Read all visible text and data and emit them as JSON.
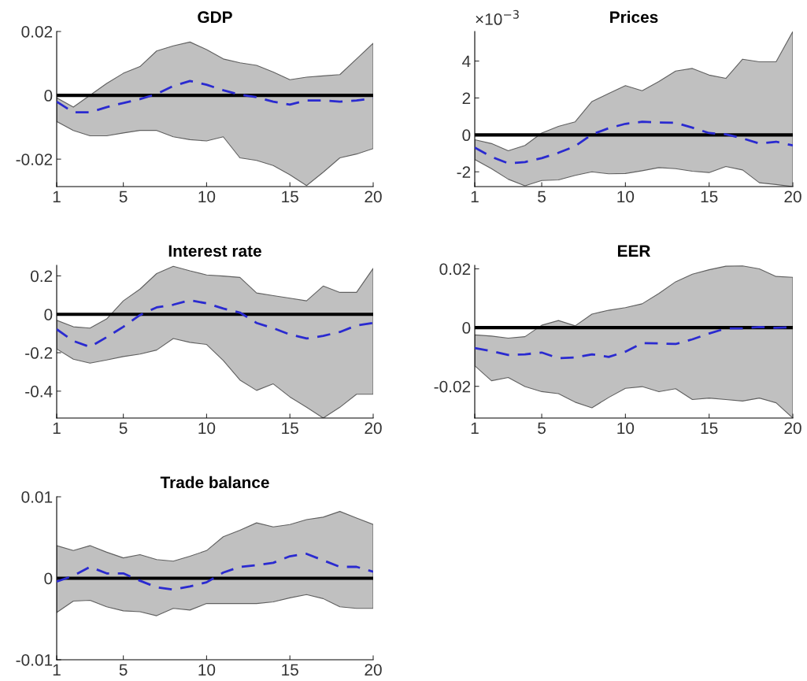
{
  "chart_data": [
    {
      "type": "line",
      "title": "GDP",
      "x": [
        1,
        2,
        3,
        4,
        5,
        6,
        7,
        8,
        9,
        10,
        11,
        12,
        13,
        14,
        15,
        16,
        17,
        18,
        19,
        20
      ],
      "xlim": [
        1,
        20
      ],
      "xticks": [
        1,
        5,
        10,
        15,
        20
      ],
      "ylim": [
        -0.0286,
        0.02
      ],
      "yticks": [
        {
          "value": -0.02,
          "label": "-0.02"
        },
        0,
        0.02
      ],
      "grid": false,
      "line_style": "dashed",
      "ref_lines": [
        {
          "axis": "y",
          "value": 0,
          "color": "#000000"
        }
      ],
      "series": [
        {
          "color": "#2a2ad0",
          "values": [
            -0.002,
            -0.0053,
            -0.0053,
            -0.0037,
            -0.0024,
            -0.0012,
            0.0004,
            0.0029,
            0.0045,
            0.0033,
            0.0016,
            0.0002,
            -0.0006,
            -0.002,
            -0.0029,
            -0.0016,
            -0.0016,
            -0.002,
            -0.0016,
            -0.001
          ],
          "lower": [
            -0.0082,
            -0.011,
            -0.0127,
            -0.0127,
            -0.0118,
            -0.011,
            -0.011,
            -0.013,
            -0.0139,
            -0.0143,
            -0.013,
            -0.0196,
            -0.0204,
            -0.022,
            -0.0249,
            -0.0283,
            -0.0241,
            -0.0196,
            -0.0184,
            -0.0167
          ],
          "upper": [
            -0.0008,
            -0.0037,
            0,
            0.0037,
            0.0069,
            0.009,
            0.0139,
            0.0155,
            0.0167,
            0.0143,
            0.0114,
            0.0102,
            0.0094,
            0.0073,
            0.0049,
            0.0057,
            0.0061,
            0.0065,
            0.0114,
            0.0163
          ]
        }
      ]
    },
    {
      "type": "line",
      "title": "Prices",
      "annotations": [
        "×10$^{−3}$"
      ],
      "x": [
        1,
        2,
        3,
        4,
        5,
        6,
        7,
        8,
        9,
        10,
        11,
        12,
        13,
        14,
        15,
        16,
        17,
        18,
        19,
        20
      ],
      "xlim": [
        1,
        20
      ],
      "xticks": [
        1,
        5,
        10,
        15,
        20
      ],
      "ylim": [
        -2.8,
        5.6
      ],
      "yticks": [
        {
          "value": -2,
          "label": "-2"
        },
        0,
        2,
        4
      ],
      "grid": false,
      "line_style": "dashed",
      "ref_lines": [
        {
          "axis": "y",
          "value": 0,
          "color": "#000000"
        }
      ],
      "series": [
        {
          "color": "#2a2ad0",
          "values": [
            -0.69,
            -1.19,
            -1.54,
            -1.47,
            -1.26,
            -0.97,
            -0.61,
            0.03,
            0.36,
            0.6,
            0.71,
            0.67,
            0.66,
            0.39,
            0.1,
            0.03,
            -0.19,
            -0.47,
            -0.37,
            -0.57
          ],
          "lower": [
            -1.33,
            -1.83,
            -2.4,
            -2.76,
            -2.47,
            -2.44,
            -2.19,
            -2.0,
            -2.11,
            -2.09,
            -1.94,
            -1.77,
            -1.83,
            -1.97,
            -2.04,
            -1.71,
            -1.9,
            -2.59,
            -2.69,
            -2.8
          ],
          "upper": [
            -0.26,
            -0.47,
            -0.86,
            -0.57,
            0.1,
            0.46,
            0.71,
            1.81,
            2.24,
            2.67,
            2.39,
            2.89,
            3.46,
            3.6,
            3.24,
            3.06,
            4.1,
            3.96,
            3.96,
            5.6
          ]
        }
      ]
    },
    {
      "type": "line",
      "title": "Interest rate",
      "x": [
        1,
        2,
        3,
        4,
        5,
        6,
        7,
        8,
        9,
        10,
        11,
        12,
        13,
        14,
        15,
        16,
        17,
        18,
        19,
        20
      ],
      "xlim": [
        1,
        20
      ],
      "xticks": [
        1,
        5,
        10,
        15,
        20
      ],
      "ylim": [
        -0.54,
        0.255
      ],
      "yticks": [
        {
          "value": -0.4,
          "label": "-0.4"
        },
        {
          "value": -0.2,
          "label": "-0.2"
        },
        0,
        0.2
      ],
      "grid": false,
      "line_style": "dashed",
      "ref_lines": [
        {
          "axis": "y",
          "value": 0,
          "color": "#000000"
        }
      ],
      "series": [
        {
          "color": "#2a2ad0",
          "values": [
            -0.078,
            -0.139,
            -0.17,
            -0.119,
            -0.065,
            -0.004,
            0.036,
            0.05,
            0.073,
            0.057,
            0.03,
            0.009,
            -0.045,
            -0.072,
            -0.105,
            -0.126,
            -0.112,
            -0.092,
            -0.058,
            -0.045
          ],
          "lower": [
            -0.18,
            -0.234,
            -0.254,
            -0.238,
            -0.22,
            -0.207,
            -0.186,
            -0.126,
            -0.146,
            -0.157,
            -0.24,
            -0.342,
            -0.396,
            -0.362,
            -0.43,
            -0.484,
            -0.54,
            -0.484,
            -0.416,
            -0.416
          ],
          "upper": [
            -0.031,
            -0.065,
            -0.072,
            -0.024,
            0.07,
            0.131,
            0.212,
            0.25,
            0.226,
            0.205,
            0.199,
            0.192,
            0.111,
            0.097,
            0.084,
            0.07,
            0.147,
            0.114,
            0.114,
            0.239
          ]
        }
      ]
    },
    {
      "type": "line",
      "title": "EER",
      "x": [
        1,
        2,
        3,
        4,
        5,
        6,
        7,
        8,
        9,
        10,
        11,
        12,
        13,
        14,
        15,
        16,
        17,
        18,
        19,
        20
      ],
      "xlim": [
        1,
        20
      ],
      "xticks": [
        1,
        5,
        10,
        15,
        20
      ],
      "ylim": [
        -0.0308,
        0.0212
      ],
      "yticks": [
        {
          "value": -0.02,
          "label": "-0.02"
        },
        0,
        0.02
      ],
      "grid": false,
      "line_style": "dashed",
      "ref_lines": [
        {
          "axis": "y",
          "value": 0,
          "color": "#000000"
        }
      ],
      "series": [
        {
          "color": "#2a2ad0",
          "values": [
            -0.007,
            -0.008,
            -0.0093,
            -0.0091,
            -0.0085,
            -0.0104,
            -0.0102,
            -0.0091,
            -0.01,
            -0.0082,
            -0.0053,
            -0.0054,
            -0.0056,
            -0.004,
            -0.002,
            -0.0003,
            -0.0003,
            0.0002,
            -0.0001,
            0.0002
          ],
          "lower": [
            -0.013,
            -0.0181,
            -0.017,
            -0.0201,
            -0.0218,
            -0.0225,
            -0.0254,
            -0.0273,
            -0.0238,
            -0.0207,
            -0.0201,
            -0.0218,
            -0.0208,
            -0.0245,
            -0.024,
            -0.0245,
            -0.025,
            -0.024,
            -0.0256,
            -0.0308
          ],
          "upper": [
            -0.0025,
            -0.0029,
            -0.0036,
            -0.0031,
            0.0008,
            0.0024,
            0.0006,
            0.0046,
            0.0059,
            0.0068,
            0.0081,
            0.0116,
            0.0156,
            0.0182,
            0.0197,
            0.0209,
            0.021,
            0.02,
            0.0174,
            0.0171
          ]
        }
      ]
    },
    {
      "type": "line",
      "title": "Trade balance",
      "x": [
        1,
        2,
        3,
        4,
        5,
        6,
        7,
        8,
        9,
        10,
        11,
        12,
        13,
        14,
        15,
        16,
        17,
        18,
        19,
        20
      ],
      "xlim": [
        1,
        20
      ],
      "xticks": [
        1,
        5,
        10,
        15,
        20
      ],
      "ylim": [
        -0.01,
        0.01
      ],
      "yticks": [
        {
          "value": -0.01,
          "label": "-0.01"
        },
        0,
        0.01
      ],
      "grid": false,
      "line_style": "dashed",
      "ref_lines": [
        {
          "axis": "y",
          "value": 0,
          "color": "#000000"
        }
      ],
      "series": [
        {
          "color": "#2a2ad0",
          "values": [
            -0.0004,
            0.0003,
            0.0014,
            0.0006,
            0.0006,
            -0.0003,
            -0.0011,
            -0.0014,
            -0.001,
            -0.0005,
            0.0007,
            0.0014,
            0.0016,
            0.0019,
            0.0027,
            0.003,
            0.0022,
            0.0014,
            0.0014,
            0.0008
          ],
          "lower": [
            -0.0042,
            -0.0028,
            -0.0027,
            -0.0035,
            -0.004,
            -0.0041,
            -0.0046,
            -0.0037,
            -0.0039,
            -0.0031,
            -0.0031,
            -0.0031,
            -0.0031,
            -0.0029,
            -0.0024,
            -0.002,
            -0.0025,
            -0.0035,
            -0.0037,
            -0.0037
          ],
          "upper": [
            0.004,
            0.0034,
            0.004,
            0.0032,
            0.0025,
            0.0029,
            0.0023,
            0.0021,
            0.0027,
            0.0034,
            0.0051,
            0.0059,
            0.0068,
            0.0063,
            0.0066,
            0.0072,
            0.0075,
            0.0082,
            0.0074,
            0.0066
          ]
        }
      ]
    }
  ]
}
